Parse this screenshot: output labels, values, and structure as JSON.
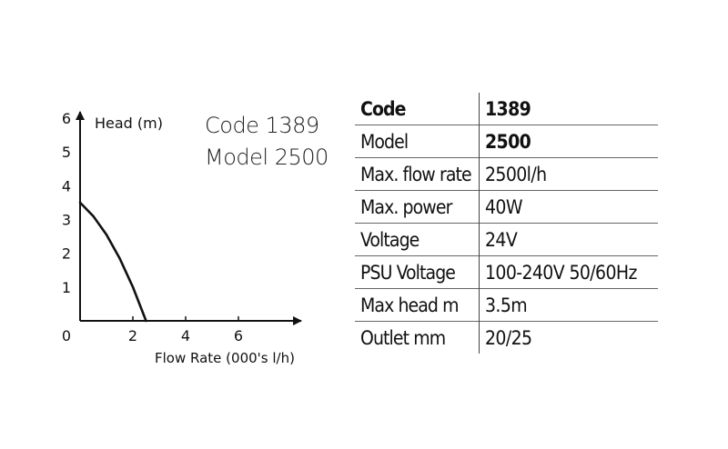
{
  "chart_data": {
    "type": "line",
    "title": "",
    "xlabel": "Flow Rate (000's l/h)",
    "ylabel": "Head (m)",
    "x_ticks": [
      0,
      2,
      4,
      6
    ],
    "y_ticks": [
      1,
      2,
      3,
      4,
      5,
      6
    ],
    "xlim": [
      0,
      8
    ],
    "ylim": [
      0,
      6
    ],
    "grid": false,
    "series": [
      {
        "x": [
          0,
          0.5,
          1.0,
          1.5,
          2.0,
          2.5
        ],
        "y": [
          3.5,
          3.1,
          2.55,
          1.85,
          1.0,
          0
        ]
      }
    ],
    "annotations": [
      "Code 1389",
      "Model 2500"
    ],
    "line_color": "#111111"
  },
  "spec_table": {
    "rows": [
      {
        "key": "Code",
        "value": "1389",
        "key_bold": true,
        "value_bold": true
      },
      {
        "key": "Model",
        "value": "2500",
        "key_bold": false,
        "value_bold": true
      },
      {
        "key": "Max. flow rate",
        "value": "2500l/h",
        "key_bold": false,
        "value_bold": false
      },
      {
        "key": "Max. power",
        "value": "40W",
        "key_bold": false,
        "value_bold": false
      },
      {
        "key": "Voltage",
        "value": "24V",
        "key_bold": false,
        "value_bold": false
      },
      {
        "key": "PSU Voltage",
        "value": "100-240V 50/60Hz",
        "key_bold": false,
        "value_bold": false
      },
      {
        "key": "Max head m",
        "value": "3.5m",
        "key_bold": false,
        "value_bold": false
      },
      {
        "key": "Outlet mm",
        "value": "20/25",
        "key_bold": false,
        "value_bold": false
      }
    ]
  }
}
